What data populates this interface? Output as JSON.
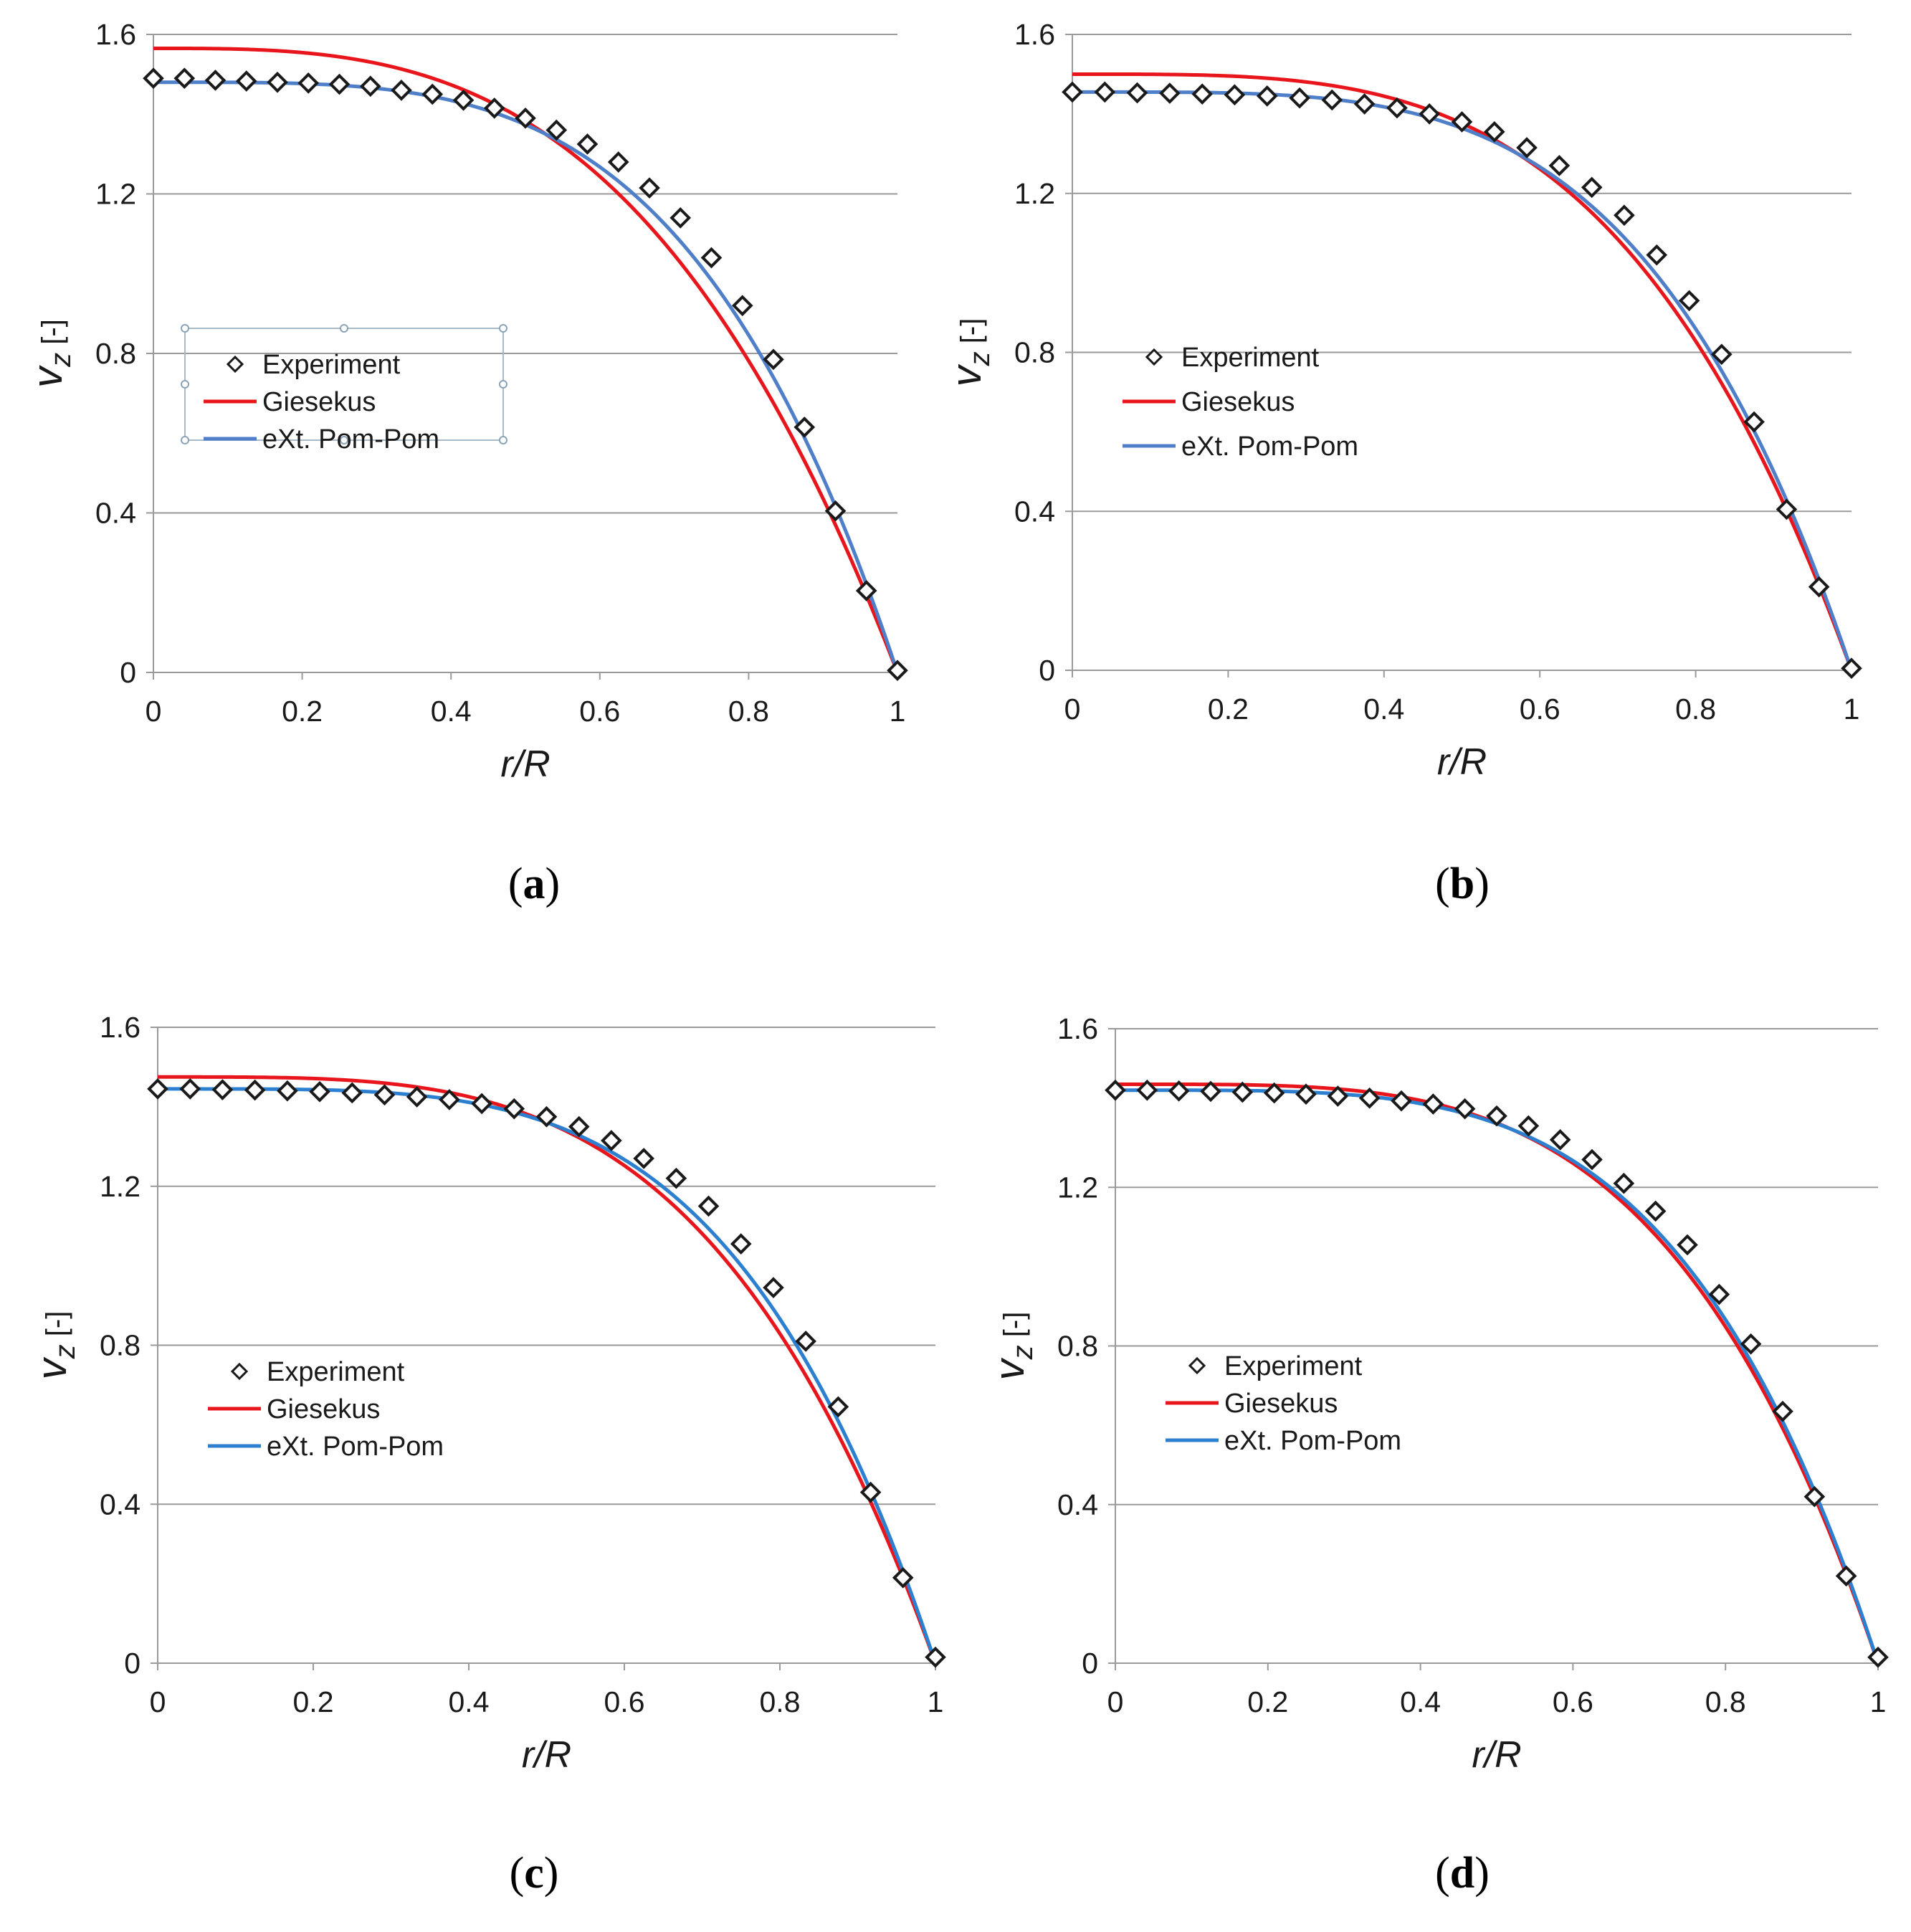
{
  "chart_data": [
    {
      "id": "a",
      "type": "line",
      "panel_label": "a",
      "xlabel_italic": "r",
      "xlabel_rest": "/R",
      "ylabel_main": "v",
      "ylabel_sub": "z",
      "ylabel_unit": " [-]",
      "xlim": [
        0,
        1
      ],
      "ylim": [
        0,
        1.6
      ],
      "xticks": [
        "0",
        "0.2",
        "0.4",
        "0.6",
        "0.8",
        "1"
      ],
      "yticks": [
        "0",
        "0.4",
        "0.8",
        "1.2",
        "1.6"
      ],
      "grid": "horizontal",
      "legend": [
        "Experiment",
        "Giesekus",
        "eXt. Pom-Pom"
      ],
      "legend_selected": true,
      "series": [
        {
          "name": "Experiment",
          "kind": "marker",
          "marker": "diamond",
          "x": [
            0,
            0.0417,
            0.0833,
            0.125,
            0.1667,
            0.2083,
            0.25,
            0.2917,
            0.3333,
            0.375,
            0.4167,
            0.4583,
            0.5,
            0.5417,
            0.5833,
            0.625,
            0.6667,
            0.7083,
            0.75,
            0.7917,
            0.8333,
            0.875,
            0.9167,
            0.9583,
            1.0
          ],
          "y": [
            1.49,
            1.49,
            1.485,
            1.483,
            1.48,
            1.478,
            1.475,
            1.47,
            1.46,
            1.45,
            1.435,
            1.415,
            1.39,
            1.36,
            1.325,
            1.28,
            1.215,
            1.14,
            1.04,
            0.92,
            0.785,
            0.615,
            0.405,
            0.205,
            0.005
          ]
        },
        {
          "name": "Giesekus",
          "kind": "line",
          "color": "#e8161c",
          "n": 3.1,
          "y0": 1.565
        },
        {
          "name": "eXt. Pom-Pom",
          "kind": "line",
          "color": "#4f7fc9",
          "n": 3.8,
          "y0": 1.48
        }
      ]
    },
    {
      "id": "b",
      "type": "line",
      "panel_label": "b",
      "xlabel_italic": "r",
      "xlabel_rest": "/R",
      "ylabel_main": "v",
      "ylabel_sub": "z",
      "ylabel_unit": " [-]",
      "xlim": [
        0,
        1
      ],
      "ylim": [
        0,
        1.6
      ],
      "xticks": [
        "0",
        "0.2",
        "0.4",
        "0.6",
        "0.8",
        "1"
      ],
      "yticks": [
        "0",
        "0.4",
        "0.8",
        "1.2",
        "1.6"
      ],
      "grid": "horizontal",
      "legend": [
        "Experiment",
        "Giesekus",
        "eXt. Pom-Pom"
      ],
      "legend_selected": false,
      "series": [
        {
          "name": "Experiment",
          "kind": "marker",
          "marker": "diamond",
          "x": [
            0,
            0.0417,
            0.0833,
            0.125,
            0.1667,
            0.2083,
            0.25,
            0.2917,
            0.3333,
            0.375,
            0.4167,
            0.4583,
            0.5,
            0.5417,
            0.5833,
            0.625,
            0.6667,
            0.7083,
            0.75,
            0.7917,
            0.8333,
            0.875,
            0.9167,
            0.9583,
            1.0
          ],
          "y": [
            1.455,
            1.455,
            1.453,
            1.452,
            1.45,
            1.448,
            1.445,
            1.44,
            1.435,
            1.425,
            1.415,
            1.4,
            1.38,
            1.355,
            1.315,
            1.27,
            1.215,
            1.145,
            1.045,
            0.93,
            0.795,
            0.625,
            0.405,
            0.21,
            0.005
          ]
        },
        {
          "name": "Giesekus",
          "kind": "line",
          "color": "#e8161c",
          "n": 3.6,
          "y0": 1.5
        },
        {
          "name": "eXt. Pom-Pom",
          "kind": "line",
          "color": "#4f7fc9",
          "n": 4.0,
          "y0": 1.455
        }
      ]
    },
    {
      "id": "c",
      "type": "line",
      "panel_label": "c",
      "xlabel_italic": "r",
      "xlabel_rest": "/R",
      "ylabel_main": "v",
      "ylabel_sub": "z",
      "ylabel_unit": " [-]",
      "xlim": [
        0,
        1
      ],
      "ylim": [
        0,
        1.6
      ],
      "xticks": [
        "0",
        "0.2",
        "0.4",
        "0.6",
        "0.8",
        "1"
      ],
      "yticks": [
        "0",
        "0.4",
        "0.8",
        "1.2",
        "1.6"
      ],
      "grid": "horizontal",
      "legend": [
        "Experiment",
        "Giesekus",
        "eXt. Pom-Pom"
      ],
      "legend_selected": false,
      "series": [
        {
          "name": "Experiment",
          "kind": "marker",
          "marker": "diamond",
          "x": [
            0,
            0.0417,
            0.0833,
            0.125,
            0.1667,
            0.2083,
            0.25,
            0.2917,
            0.3333,
            0.375,
            0.4167,
            0.4583,
            0.5,
            0.5417,
            0.5833,
            0.625,
            0.6667,
            0.7083,
            0.75,
            0.7917,
            0.8333,
            0.875,
            0.9167,
            0.9583,
            1.0
          ],
          "y": [
            1.445,
            1.445,
            1.443,
            1.442,
            1.44,
            1.438,
            1.435,
            1.43,
            1.425,
            1.418,
            1.408,
            1.395,
            1.375,
            1.35,
            1.315,
            1.27,
            1.22,
            1.15,
            1.055,
            0.945,
            0.81,
            0.645,
            0.43,
            0.215,
            0.015
          ]
        },
        {
          "name": "Giesekus",
          "kind": "line",
          "color": "#e8161c",
          "n": 3.7,
          "y0": 1.475
        },
        {
          "name": "eXt. Pom-Pom",
          "kind": "line",
          "color": "#2d7fd0",
          "n": 4.1,
          "y0": 1.445
        }
      ]
    },
    {
      "id": "d",
      "type": "line",
      "panel_label": "d",
      "xlabel_italic": "r",
      "xlabel_rest": "/R",
      "ylabel_main": "v",
      "ylabel_sub": "z",
      "ylabel_unit": " [-]",
      "xlim": [
        0,
        1
      ],
      "ylim": [
        0,
        1.6
      ],
      "xticks": [
        "0",
        "0.2",
        "0.4",
        "0.6",
        "0.8",
        "1"
      ],
      "yticks": [
        "0",
        "0.4",
        "0.8",
        "1.2",
        "1.6"
      ],
      "grid": "horizontal",
      "legend": [
        "Experiment",
        "Giesekus",
        "eXt. Pom-Pom"
      ],
      "legend_selected": false,
      "series": [
        {
          "name": "Experiment",
          "kind": "marker",
          "marker": "diamond",
          "x": [
            0,
            0.0417,
            0.0833,
            0.125,
            0.1667,
            0.2083,
            0.25,
            0.2917,
            0.3333,
            0.375,
            0.4167,
            0.4583,
            0.5,
            0.5417,
            0.5833,
            0.625,
            0.6667,
            0.7083,
            0.75,
            0.7917,
            0.8333,
            0.875,
            0.9167,
            0.9583,
            1.0
          ],
          "y": [
            1.445,
            1.445,
            1.443,
            1.442,
            1.44,
            1.438,
            1.435,
            1.43,
            1.425,
            1.418,
            1.41,
            1.398,
            1.38,
            1.355,
            1.32,
            1.27,
            1.21,
            1.14,
            1.055,
            0.93,
            0.805,
            0.635,
            0.42,
            0.22,
            0.015
          ]
        },
        {
          "name": "Giesekus",
          "kind": "line",
          "color": "#e8161c",
          "n": 3.9,
          "y0": 1.46
        },
        {
          "name": "eXt. Pom-Pom",
          "kind": "line",
          "color": "#2d7fd0",
          "n": 4.1,
          "y0": 1.445
        }
      ]
    }
  ]
}
